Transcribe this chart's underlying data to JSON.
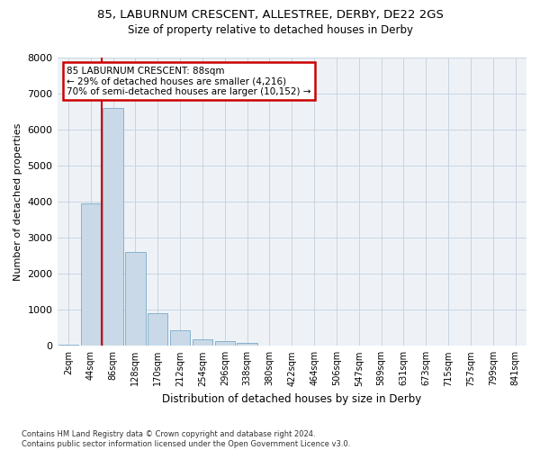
{
  "title_main": "85, LABURNUM CRESCENT, ALLESTREE, DERBY, DE22 2GS",
  "title_sub": "Size of property relative to detached houses in Derby",
  "xlabel": "Distribution of detached houses by size in Derby",
  "ylabel": "Number of detached properties",
  "categories": [
    "2sqm",
    "44sqm",
    "86sqm",
    "128sqm",
    "170sqm",
    "212sqm",
    "254sqm",
    "296sqm",
    "338sqm",
    "380sqm",
    "422sqm",
    "464sqm",
    "506sqm",
    "547sqm",
    "589sqm",
    "631sqm",
    "673sqm",
    "715sqm",
    "757sqm",
    "799sqm",
    "841sqm"
  ],
  "bar_values": [
    25,
    3950,
    6600,
    2600,
    900,
    420,
    170,
    130,
    75,
    0,
    0,
    0,
    0,
    0,
    0,
    0,
    0,
    0,
    0,
    0,
    0
  ],
  "bar_color": "#c9d9e8",
  "bar_edge_color": "#7aaac8",
  "grid_color": "#c8d4e0",
  "annotation_text": "85 LABURNUM CRESCENT: 88sqm\n← 29% of detached houses are smaller (4,216)\n70% of semi-detached houses are larger (10,152) →",
  "annotation_box_facecolor": "#ffffff",
  "annotation_box_edge_color": "#cc0000",
  "property_line_color": "#cc0000",
  "property_line_x": 1.5,
  "ylim": [
    0,
    8000
  ],
  "yticks": [
    0,
    1000,
    2000,
    3000,
    4000,
    5000,
    6000,
    7000,
    8000
  ],
  "footer_line1": "Contains HM Land Registry data © Crown copyright and database right 2024.",
  "footer_line2": "Contains public sector information licensed under the Open Government Licence v3.0.",
  "bg_color": "#ffffff",
  "plot_bg_color": "#eef2f7"
}
